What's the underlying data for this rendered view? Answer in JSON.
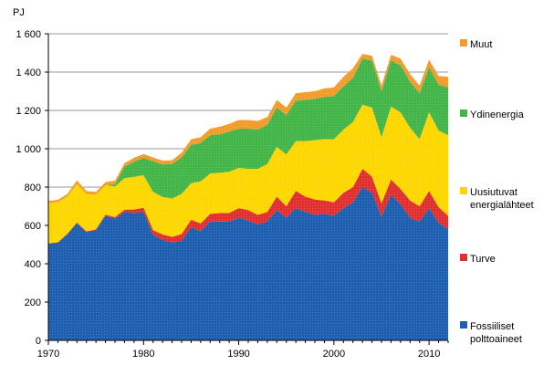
{
  "chart_data": {
    "type": "area",
    "stacked": true,
    "title": "",
    "ylabel": "PJ",
    "xlabel": "",
    "x": [
      1970,
      1971,
      1972,
      1973,
      1974,
      1975,
      1976,
      1977,
      1978,
      1979,
      1980,
      1981,
      1982,
      1983,
      1984,
      1985,
      1986,
      1987,
      1988,
      1989,
      1990,
      1991,
      1992,
      1993,
      1994,
      1995,
      1996,
      1997,
      1998,
      1999,
      2000,
      2001,
      2002,
      2003,
      2004,
      2005,
      2006,
      2007,
      2008,
      2009,
      2010,
      2011,
      2012
    ],
    "xlim": [
      1970,
      2012
    ],
    "ylim": [
      0,
      1600
    ],
    "x_ticks": [
      {
        "value": 1970,
        "label": "1970"
      },
      {
        "value": 1980,
        "label": "1980"
      },
      {
        "value": 1990,
        "label": "1990"
      },
      {
        "value": 2000,
        "label": "2000"
      },
      {
        "value": 2010,
        "label": "2010"
      }
    ],
    "y_ticks": [
      {
        "value": 0,
        "label": "0"
      },
      {
        "value": 200,
        "label": "200"
      },
      {
        "value": 400,
        "label": "400"
      },
      {
        "value": 600,
        "label": "600"
      },
      {
        "value": 800,
        "label": "800"
      },
      {
        "value": 1000,
        "label": "1 000"
      },
      {
        "value": 1200,
        "label": "1 200"
      },
      {
        "value": 1400,
        "label": "1 400"
      },
      {
        "value": 1600,
        "label": "1 600"
      }
    ],
    "grid": "horizontal",
    "legend_position": "right",
    "series": [
      {
        "name": "Fossiiliset polttoaineet",
        "legend_lines": [
          "Fossiiliset",
          "polttoaineet"
        ],
        "color": "#1f5fb0",
        "values": [
          505,
          510,
          555,
          612,
          565,
          575,
          650,
          635,
          670,
          665,
          670,
          550,
          525,
          510,
          520,
          590,
          570,
          620,
          620,
          620,
          640,
          625,
          605,
          620,
          680,
          640,
          690,
          670,
          655,
          660,
          650,
          690,
          720,
          800,
          770,
          645,
          760,
          710,
          640,
          620,
          690,
          615,
          580
        ]
      },
      {
        "name": "Turve",
        "legend_lines": [
          "Turve"
        ],
        "color": "#e0302f",
        "values": [
          2,
          2,
          2,
          3,
          4,
          5,
          6,
          8,
          12,
          18,
          22,
          25,
          28,
          30,
          35,
          40,
          40,
          40,
          45,
          45,
          50,
          55,
          50,
          50,
          70,
          60,
          90,
          80,
          80,
          70,
          70,
          80,
          80,
          95,
          85,
          70,
          80,
          80,
          90,
          80,
          90,
          80,
          70
        ]
      },
      {
        "name": "Uusiutuvat energialähteet",
        "legend_lines": [
          "Uusiutuvat",
          "energialähteet"
        ],
        "color": "#ffd700",
        "values": [
          210,
          210,
          195,
          200,
          195,
          180,
          155,
          160,
          165,
          170,
          170,
          200,
          195,
          200,
          210,
          190,
          220,
          210,
          210,
          215,
          210,
          215,
          240,
          250,
          260,
          270,
          260,
          290,
          310,
          320,
          330,
          330,
          340,
          335,
          360,
          345,
          380,
          400,
          380,
          350,
          410,
          400,
          420
        ]
      },
      {
        "name": "Ydinenergia",
        "legend_lines": [
          "Ydinenergia"
        ],
        "color": "#44b549",
        "values": [
          0,
          0,
          0,
          0,
          0,
          0,
          0,
          10,
          60,
          80,
          90,
          160,
          170,
          180,
          190,
          200,
          200,
          200,
          200,
          210,
          205,
          210,
          205,
          205,
          205,
          205,
          210,
          215,
          215,
          220,
          225,
          225,
          230,
          240,
          245,
          240,
          240,
          245,
          240,
          240,
          235,
          240,
          250
        ]
      },
      {
        "name": "Muut",
        "legend_lines": [
          "Muut"
        ],
        "color": "#f29c2c",
        "values": [
          10,
          12,
          12,
          20,
          15,
          15,
          15,
          20,
          18,
          20,
          20,
          20,
          20,
          20,
          25,
          30,
          30,
          35,
          40,
          40,
          45,
          45,
          45,
          40,
          40,
          40,
          40,
          40,
          40,
          45,
          45,
          50,
          50,
          25,
          25,
          30,
          30,
          35,
          40,
          40,
          40,
          45,
          55
        ]
      }
    ]
  }
}
